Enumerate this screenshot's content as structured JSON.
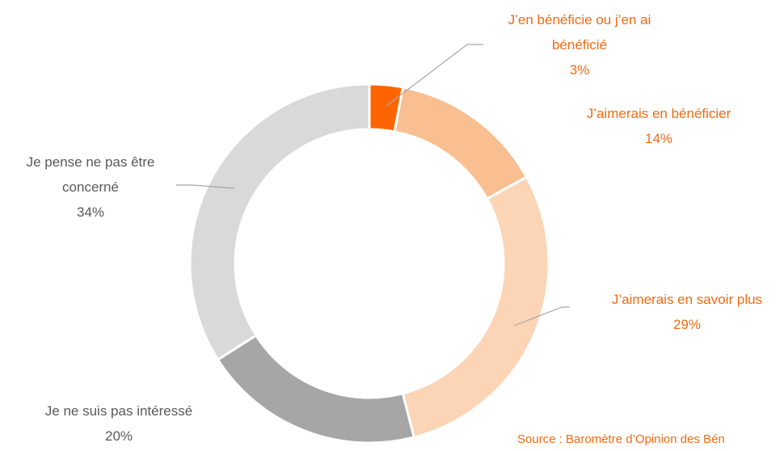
{
  "chart_data": {
    "type": "pie",
    "categories": [
      "J’en bénéficie ou j’en ai bénéficié",
      "J’aimerais en bénéficier",
      "J’aimerais en savoir plus",
      "Je ne suis pas intéressé",
      "Je pense ne pas être concerné"
    ],
    "values": [
      3,
      14,
      29,
      20,
      34
    ],
    "value_labels": [
      "3%",
      "14%",
      "29%",
      "20%",
      "34%"
    ],
    "colors": [
      "#fe6500",
      "#f9bf90",
      "#fbd5b5",
      "#a6a6a6",
      "#d9d9d9"
    ],
    "label_colors": [
      "#f26b12",
      "#f26b12",
      "#f26b12",
      "#595959",
      "#595959"
    ],
    "source": "Source : Baromètre d’Opinion des Bén"
  }
}
